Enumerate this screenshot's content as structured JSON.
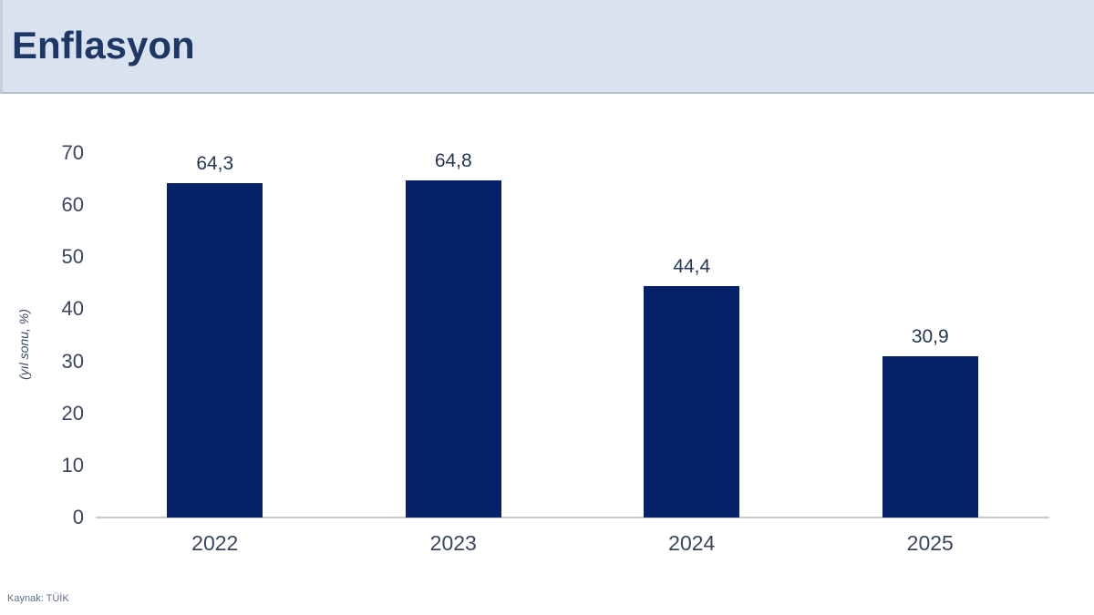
{
  "header": {
    "title": "Enflasyon"
  },
  "footer": {
    "source": "Kaynak: TÜİK"
  },
  "colors": {
    "header_bg": "#d9e2ef",
    "title_text": "#1e3765",
    "bar": "#052169",
    "axis_line": "#c9c9c9",
    "tick_text": "#3a4660",
    "source_text": "#5f6e88"
  },
  "chart_data": {
    "type": "bar",
    "title": "Enflasyon",
    "categories": [
      "2022",
      "2023",
      "2024",
      "2025"
    ],
    "values": [
      64.3,
      64.8,
      44.4,
      30.9
    ],
    "value_labels": [
      "64,3",
      "64,8",
      "44,4",
      "30,9"
    ],
    "xlabel": "",
    "ylabel": "(yıl sonu, %)",
    "ylim": [
      0,
      70
    ],
    "yticks": [
      0,
      10,
      20,
      30,
      40,
      50,
      60,
      70
    ],
    "grid": false,
    "legend": "none",
    "bar_color": "#052169"
  }
}
